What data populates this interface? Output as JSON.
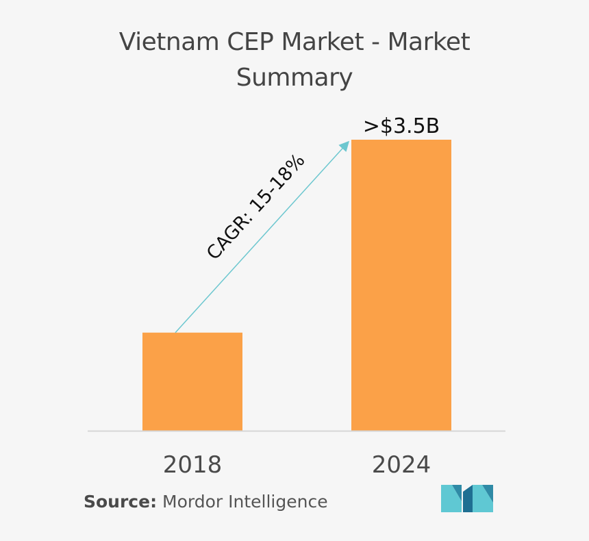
{
  "chart_data": {
    "type": "bar",
    "title": "Vietnam CEP Market - Market Summary",
    "categories": [
      "2018",
      "2024"
    ],
    "values": [
      1.18,
      3.5
    ],
    "value_labels": [
      "",
      ">$3.5B"
    ],
    "annotation": "CAGR: 15-18%",
    "ylim": [
      0,
      4.2
    ],
    "grid": false,
    "legend": "none",
    "bar_color": "#fba148",
    "arrow_color": "#6cc7cf"
  },
  "source": {
    "label": "Source:",
    "text": "Mordor Intelligence"
  },
  "logo": {
    "icon": "mordor-intelligence-logo",
    "colors": [
      "#5fc8d3",
      "#2f8aa6",
      "#1f6f92"
    ]
  }
}
